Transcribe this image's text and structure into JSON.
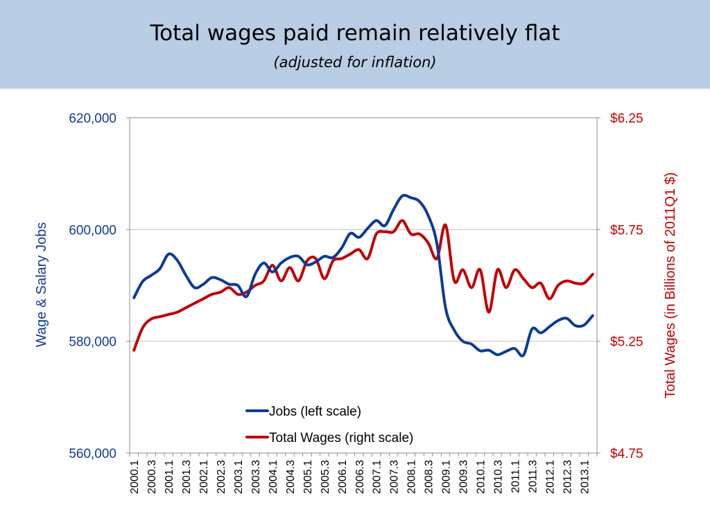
{
  "slide": {
    "title": "Total wages paid remain relatively flat",
    "subtitle": "(adjusted for inflation)",
    "band_color": "#b9cde5"
  },
  "chart_data": {
    "type": "line",
    "ylabel_left": "Wage & Salary Jobs",
    "ylabel_right": "Total Wages (in Billions of 2011Q1 $)",
    "y_left_lim": [
      560000,
      620000
    ],
    "y_right_lim": [
      4.75,
      6.25
    ],
    "y_left_ticks": [
      "620,000",
      "600,000",
      "580,000",
      "560,000"
    ],
    "y_right_ticks": [
      "$6.25",
      "$5.75",
      "$5.25",
      "$4.75"
    ],
    "grid": "horizontal",
    "legend_position": "bottom-center",
    "x_tick_labels": [
      "2000.1",
      "2000.3",
      "2001.1",
      "2001.3",
      "2002.1",
      "2002.3",
      "2003.1",
      "2003.3",
      "2004.1",
      "2004.3",
      "2005.1",
      "2005.3",
      "2006.1",
      "2006.3",
      "2007.1",
      "2007.3",
      "2008.1",
      "2008.3",
      "2009.1",
      "2009.3",
      "2010.1",
      "2010.3",
      "2011.1",
      "2011.3",
      "2012.1",
      "2012.3",
      "2013.1"
    ],
    "x": [
      "2000.1",
      "2000.2",
      "2000.3",
      "2000.4",
      "2001.1",
      "2001.2",
      "2001.3",
      "2001.4",
      "2002.1",
      "2002.2",
      "2002.3",
      "2002.4",
      "2003.1",
      "2003.2",
      "2003.3",
      "2003.4",
      "2004.1",
      "2004.2",
      "2004.3",
      "2004.4",
      "2005.1",
      "2005.2",
      "2005.3",
      "2005.4",
      "2006.1",
      "2006.2",
      "2006.3",
      "2006.4",
      "2007.1",
      "2007.2",
      "2007.3",
      "2007.4",
      "2008.1",
      "2008.2",
      "2008.3",
      "2008.4",
      "2009.1",
      "2009.2",
      "2009.3",
      "2009.4",
      "2010.1",
      "2010.2",
      "2010.3",
      "2010.4",
      "2011.1",
      "2011.2",
      "2011.3",
      "2011.4",
      "2012.1",
      "2012.2",
      "2012.3",
      "2012.4",
      "2013.1",
      "2013.2"
    ],
    "series": [
      {
        "name": "Jobs (left scale)",
        "axis": "left",
        "color": "#0d3a96",
        "values": [
          587800,
          590700,
          591800,
          593000,
          595600,
          594500,
          591800,
          589600,
          590200,
          591400,
          591000,
          590200,
          590000,
          588000,
          592000,
          594000,
          592400,
          594000,
          595000,
          595200,
          593700,
          594200,
          595200,
          595000,
          596700,
          599300,
          598600,
          600200,
          601600,
          600700,
          603600,
          606000,
          605700,
          605000,
          602500,
          597500,
          586000,
          582000,
          580000,
          579500,
          578300,
          578400,
          577600,
          578200,
          578700,
          577500,
          582200,
          581500,
          582600,
          583700,
          584100,
          582800,
          582900,
          584600
        ]
      },
      {
        "name": "Total Wages (right scale)",
        "axis": "right",
        "color": "#c00000",
        "values": [
          5.21,
          5.31,
          5.35,
          5.36,
          5.37,
          5.38,
          5.4,
          5.42,
          5.44,
          5.46,
          5.47,
          5.49,
          5.46,
          5.47,
          5.5,
          5.52,
          5.59,
          5.52,
          5.58,
          5.52,
          5.61,
          5.62,
          5.53,
          5.61,
          5.62,
          5.64,
          5.66,
          5.62,
          5.73,
          5.74,
          5.74,
          5.79,
          5.73,
          5.73,
          5.69,
          5.62,
          5.77,
          5.52,
          5.57,
          5.49,
          5.57,
          5.38,
          5.57,
          5.49,
          5.57,
          5.53,
          5.49,
          5.51,
          5.44,
          5.5,
          5.52,
          5.51,
          5.51,
          5.55
        ]
      }
    ]
  }
}
